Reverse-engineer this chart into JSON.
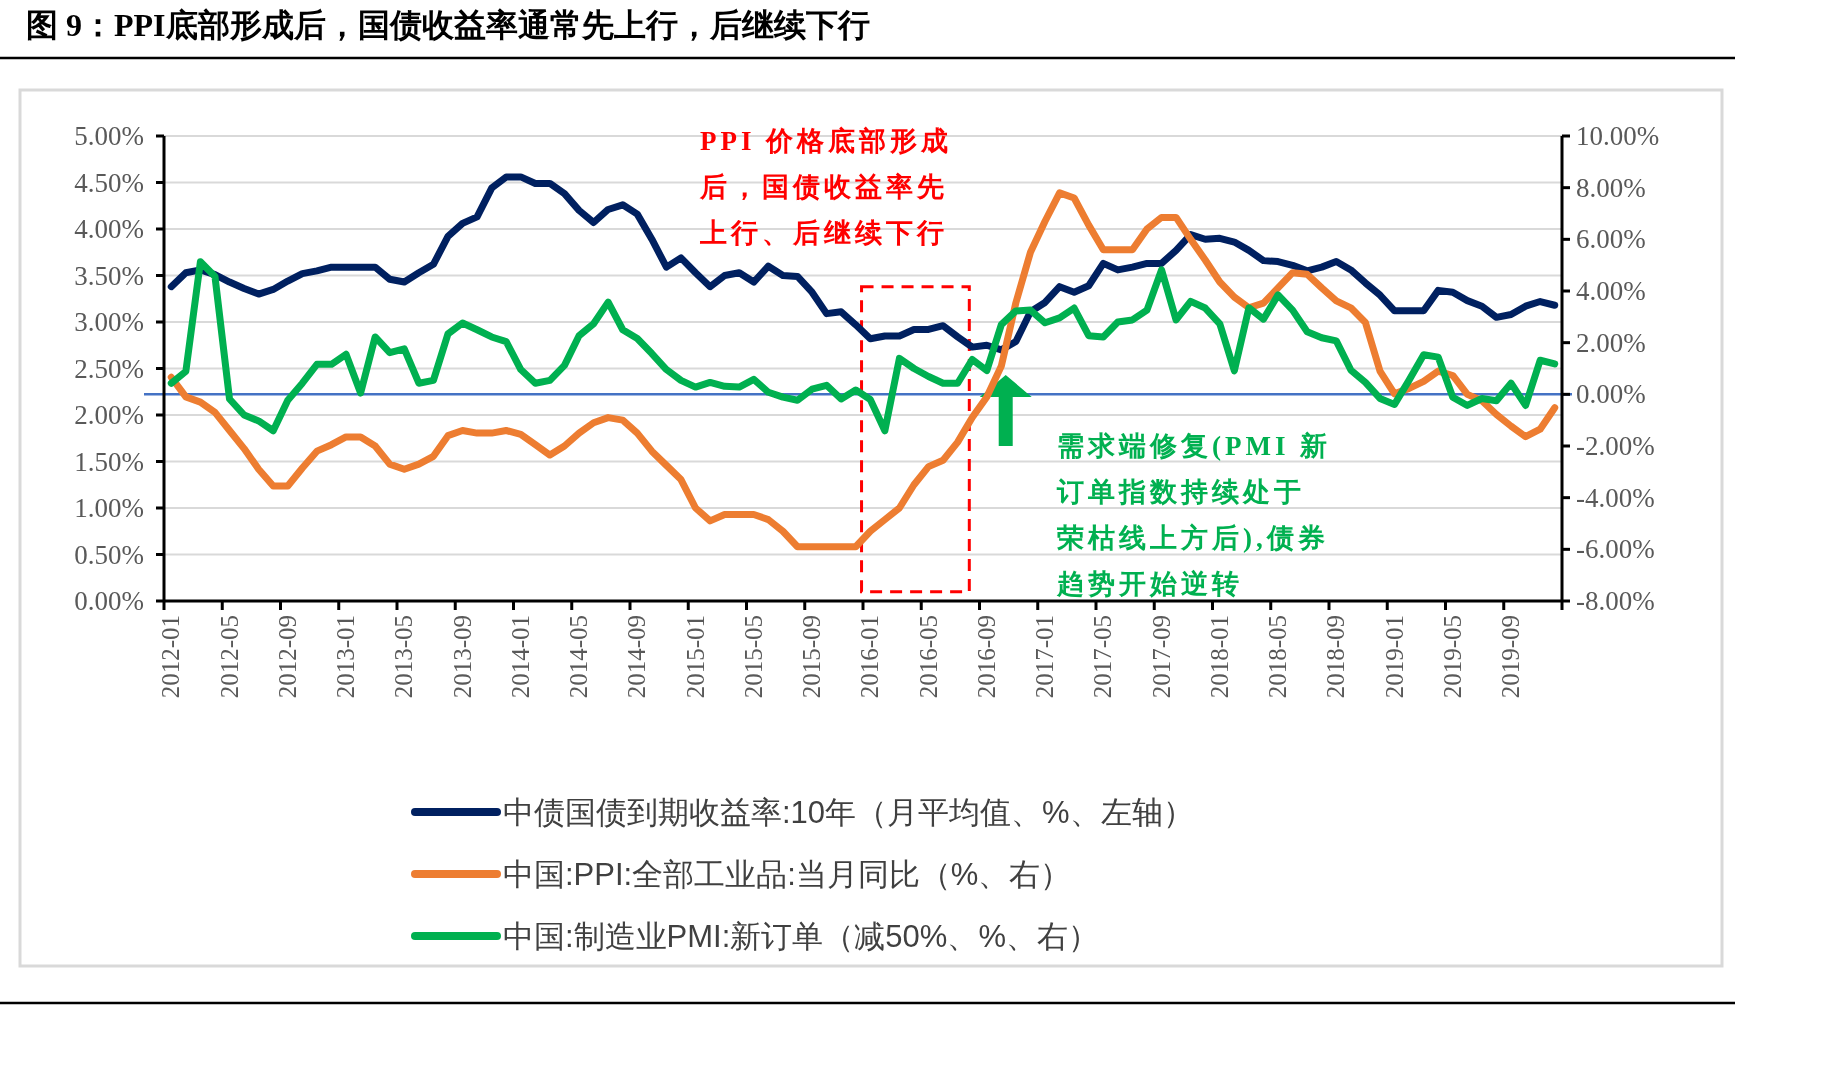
{
  "chart_data": {
    "type": "line",
    "title": "图 9：PPI底部形成后，国债收益率通常先上行，后继续下行",
    "categories": [
      "2012-01",
      null,
      null,
      null,
      "2012-05",
      null,
      null,
      null,
      "2012-09",
      null,
      null,
      null,
      "2013-01",
      null,
      null,
      null,
      "2013-05",
      null,
      null,
      null,
      "2013-09",
      null,
      null,
      null,
      "2014-01",
      null,
      null,
      null,
      "2014-05",
      null,
      null,
      null,
      "2014-09",
      null,
      null,
      null,
      "2015-01",
      null,
      null,
      null,
      "2015-05",
      null,
      null,
      null,
      "2015-09",
      null,
      null,
      null,
      "2016-01",
      null,
      null,
      null,
      "2016-05",
      null,
      null,
      null,
      "2016-09",
      null,
      null,
      null,
      "2017-01",
      null,
      null,
      null,
      "2017-05",
      null,
      null,
      null,
      "2017-09",
      null,
      null,
      null,
      "2018-01",
      null,
      null,
      null,
      "2018-05",
      null,
      null,
      null,
      "2018-09",
      null,
      null,
      null,
      "2019-01",
      null,
      null,
      null,
      "2019-05",
      null,
      null,
      null,
      "2019-09",
      null,
      null,
      null
    ],
    "series": [
      {
        "name": "中债国债到期收益率:10年（月平均值、%、左轴）",
        "color": "#002060",
        "axis": "y",
        "values": [
          3.38,
          3.53,
          3.56,
          3.51,
          3.43,
          3.36,
          3.3,
          3.35,
          3.44,
          3.52,
          3.55,
          3.59,
          3.59,
          3.59,
          3.59,
          3.46,
          3.43,
          3.53,
          3.62,
          3.92,
          4.06,
          4.13,
          4.44,
          4.56,
          4.56,
          4.49,
          4.49,
          4.38,
          4.2,
          4.07,
          4.21,
          4.26,
          4.16,
          3.89,
          3.59,
          3.69,
          3.53,
          3.38,
          3.5,
          3.53,
          3.43,
          3.6,
          3.5,
          3.49,
          3.32,
          3.09,
          3.11,
          2.97,
          2.82,
          2.85,
          2.85,
          2.92,
          2.92,
          2.96,
          2.84,
          2.73,
          2.75,
          2.7,
          2.79,
          3.11,
          3.21,
          3.38,
          3.32,
          3.39,
          3.63,
          3.56,
          3.59,
          3.63,
          3.63,
          3.77,
          3.94,
          3.89,
          3.9,
          3.86,
          3.77,
          3.66,
          3.65,
          3.61,
          3.55,
          3.59,
          3.65,
          3.56,
          3.42,
          3.29,
          3.12,
          3.12,
          3.12,
          3.34,
          3.32,
          3.23,
          3.17,
          3.05,
          3.08,
          3.17,
          3.22,
          3.18
        ]
      },
      {
        "name": "中国:PPI:全部工业品:当月同比（%、右）",
        "color": "#ED7D31",
        "axis": "y2",
        "values": [
          0.66,
          -0.1,
          -0.3,
          -0.7,
          -1.4,
          -2.1,
          -2.9,
          -3.55,
          -3.55,
          -2.85,
          -2.2,
          -1.95,
          -1.65,
          -1.65,
          -2.0,
          -2.7,
          -2.9,
          -2.7,
          -2.4,
          -1.6,
          -1.4,
          -1.5,
          -1.5,
          -1.4,
          -1.55,
          -1.95,
          -2.35,
          -2.0,
          -1.5,
          -1.1,
          -0.9,
          -1.0,
          -1.5,
          -2.2,
          -2.75,
          -3.3,
          -4.4,
          -4.9,
          -4.65,
          -4.65,
          -4.65,
          -4.85,
          -5.3,
          -5.9,
          -5.9,
          -5.9,
          -5.9,
          -5.9,
          -5.3,
          -4.85,
          -4.4,
          -3.5,
          -2.8,
          -2.55,
          -1.85,
          -0.9,
          -0.1,
          1.1,
          3.55,
          5.5,
          6.7,
          7.8,
          7.6,
          6.55,
          5.6,
          5.6,
          5.6,
          6.4,
          6.85,
          6.85,
          6.0,
          5.2,
          4.35,
          3.76,
          3.35,
          3.53,
          4.12,
          4.71,
          4.65,
          4.12,
          3.62,
          3.35,
          2.78,
          0.9,
          0.02,
          0.23,
          0.5,
          0.9,
          0.73,
          0.0,
          -0.25,
          -0.78,
          -1.23,
          -1.64,
          -1.35,
          -0.52
        ]
      },
      {
        "name": "中国:制造业PMI:新订单（减50%、%、右）",
        "color": "#00B050",
        "axis": "y2",
        "values": [
          0.43,
          0.89,
          5.13,
          4.56,
          -0.18,
          -0.8,
          -1.03,
          -1.41,
          -0.23,
          0.43,
          1.16,
          1.16,
          1.55,
          0.05,
          2.22,
          1.61,
          1.76,
          0.43,
          0.54,
          2.34,
          2.76,
          2.5,
          2.22,
          2.04,
          0.96,
          0.43,
          0.54,
          1.12,
          2.27,
          2.73,
          3.57,
          2.5,
          2.16,
          1.58,
          0.96,
          0.54,
          0.28,
          0.46,
          0.31,
          0.28,
          0.58,
          0.08,
          -0.11,
          -0.23,
          0.2,
          0.35,
          -0.18,
          0.17,
          -0.2,
          -1.41,
          1.39,
          1.0,
          0.69,
          0.43,
          0.43,
          1.35,
          0.92,
          2.7,
          3.23,
          3.26,
          2.77,
          2.96,
          3.34,
          2.27,
          2.22,
          2.8,
          2.88,
          3.26,
          4.82,
          2.88,
          3.6,
          3.34,
          2.73,
          0.91,
          3.35,
          2.91,
          3.85,
          3.26,
          2.42,
          2.19,
          2.07,
          0.94,
          0.46,
          -0.16,
          -0.39,
          0.55,
          1.53,
          1.44,
          -0.11,
          -0.43,
          -0.16,
          -0.25,
          0.43,
          -0.43,
          1.32,
          1.18
        ]
      }
    ],
    "ylim": [
      0,
      5
    ],
    "yticks": [
      {
        "value": 0,
        "label": "0.00%"
      },
      {
        "value": 0.5,
        "label": "0.50%"
      },
      {
        "value": 1,
        "label": "1.00%"
      },
      {
        "value": 1.5,
        "label": "1.50%"
      },
      {
        "value": 2,
        "label": "2.00%"
      },
      {
        "value": 2.5,
        "label": "2.50%"
      },
      {
        "value": 3,
        "label": "3.00%"
      },
      {
        "value": 3.5,
        "label": "3.50%"
      },
      {
        "value": 4,
        "label": "4.00%"
      },
      {
        "value": 4.5,
        "label": "4.50%"
      },
      {
        "value": 5,
        "label": "5.00%"
      }
    ],
    "y2lim": [
      -8,
      10
    ],
    "y2ticks": [
      {
        "value": -8,
        "label": "-8.00%"
      },
      {
        "value": -6,
        "label": "-6.00%"
      },
      {
        "value": -4,
        "label": "-4.00%"
      },
      {
        "value": -2,
        "label": "-2.00%"
      },
      {
        "value": 0,
        "label": "0.00%"
      },
      {
        "value": 2,
        "label": "2.00%"
      },
      {
        "value": 4,
        "label": "4.00%"
      },
      {
        "value": 6,
        "label": "6.00%"
      },
      {
        "value": 8,
        "label": "8.00%"
      },
      {
        "value": 10,
        "label": "10.00%"
      }
    ],
    "ref_lines": [
      {
        "axis": "y2",
        "value": 0,
        "color": "#4472C4"
      }
    ],
    "annotations": [
      "PPI 价格底部形成后，国债收益率先上行、后继续下行",
      "需求端修复(PMI 新订单指数持续处于荣枯线上方后),债券趋势开始逆转"
    ],
    "grid": "y",
    "legend": "bottom",
    "marker": "none",
    "line_style": "solid"
  }
}
